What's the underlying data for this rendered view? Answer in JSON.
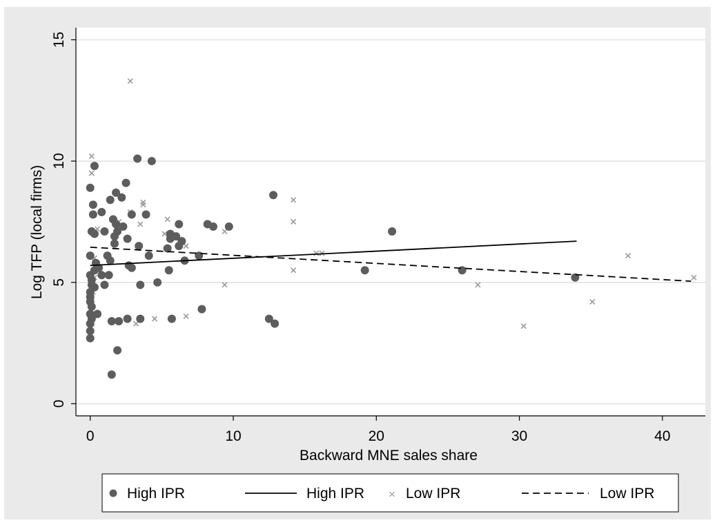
{
  "chart_data": {
    "type": "scatter",
    "xlabel": "Backward MNE sales share",
    "ylabel": "Log TFP (local firms)",
    "xlim": [
      -1,
      43
    ],
    "ylim": [
      -0.5,
      15.5
    ],
    "xticks": [
      0,
      10,
      20,
      30,
      40
    ],
    "yticks": [
      0,
      5,
      10,
      15
    ],
    "grid": "horizontal",
    "legend_position": "bottom",
    "colors": {
      "background": "#eaeaea",
      "plot_background": "#ffffff",
      "gridline": "#e1e1e1",
      "high_marker": "#5d5d5d",
      "low_marker": "#9a9a9a",
      "line": "#000000"
    },
    "legend": [
      {
        "label": "High IPR",
        "symbol": "dot"
      },
      {
        "label": "High IPR",
        "symbol": "solid-line"
      },
      {
        "label": "Low IPR",
        "symbol": "x"
      },
      {
        "label": "Low IPR",
        "symbol": "dashed-line"
      }
    ],
    "series": [
      {
        "name": "High IPR",
        "kind": "scatter",
        "marker": "dot",
        "points": [
          [
            0,
            8.9
          ],
          [
            0.1,
            7.1
          ],
          [
            0.2,
            7.8
          ],
          [
            0.2,
            8.2
          ],
          [
            0.3,
            9.8
          ],
          [
            0.3,
            7.0
          ],
          [
            0,
            6.1
          ],
          [
            0,
            5.3
          ],
          [
            0.1,
            5.1
          ],
          [
            0.1,
            4.9
          ],
          [
            0,
            4.6
          ],
          [
            0,
            4.4
          ],
          [
            0,
            4.2
          ],
          [
            0.1,
            4.0
          ],
          [
            0,
            3.7
          ],
          [
            0.1,
            3.5
          ],
          [
            0,
            3.3
          ],
          [
            0,
            3.0
          ],
          [
            0,
            2.7
          ],
          [
            0.3,
            4.8
          ],
          [
            0.3,
            5.5
          ],
          [
            0.4,
            5.8
          ],
          [
            0.5,
            3.7
          ],
          [
            0.6,
            5.6
          ],
          [
            0.8,
            7.9
          ],
          [
            0.8,
            5.3
          ],
          [
            1.0,
            4.9
          ],
          [
            1.0,
            7.1
          ],
          [
            1.2,
            6.1
          ],
          [
            1.3,
            5.3
          ],
          [
            1.4,
            5.9
          ],
          [
            1.4,
            8.4
          ],
          [
            1.5,
            1.2
          ],
          [
            1.5,
            3.4
          ],
          [
            1.6,
            7.6
          ],
          [
            1.7,
            6.9
          ],
          [
            1.7,
            6.6
          ],
          [
            1.8,
            8.7
          ],
          [
            1.8,
            7.4
          ],
          [
            1.9,
            7.1
          ],
          [
            1.9,
            2.2
          ],
          [
            2.0,
            3.4
          ],
          [
            2.2,
            8.5
          ],
          [
            2.3,
            7.3
          ],
          [
            2.5,
            9.1
          ],
          [
            2.6,
            6.8
          ],
          [
            2.6,
            3.5
          ],
          [
            2.7,
            5.7
          ],
          [
            2.9,
            7.8
          ],
          [
            2.9,
            5.6
          ],
          [
            3.3,
            10.1
          ],
          [
            3.4,
            6.5
          ],
          [
            3.5,
            3.5
          ],
          [
            3.5,
            4.9
          ],
          [
            3.9,
            7.8
          ],
          [
            4.1,
            6.1
          ],
          [
            4.3,
            10.0
          ],
          [
            4.7,
            5.0
          ],
          [
            5.4,
            6.4
          ],
          [
            5.5,
            5.5
          ],
          [
            5.6,
            7.0
          ],
          [
            5.6,
            6.8
          ],
          [
            5.7,
            3.5
          ],
          [
            6.0,
            6.9
          ],
          [
            6.2,
            7.4
          ],
          [
            6.2,
            6.5
          ],
          [
            6.4,
            6.7
          ],
          [
            6.6,
            5.9
          ],
          [
            7.6,
            6.1
          ],
          [
            7.8,
            3.9
          ],
          [
            8.2,
            7.4
          ],
          [
            8.6,
            7.3
          ],
          [
            9.7,
            7.3
          ],
          [
            12.5,
            3.5
          ],
          [
            12.8,
            8.6
          ],
          [
            12.9,
            3.3
          ],
          [
            19.2,
            5.5
          ],
          [
            21.1,
            7.1
          ],
          [
            26.0,
            5.5
          ],
          [
            33.9,
            5.2
          ]
        ]
      },
      {
        "name": "High IPR",
        "kind": "line",
        "style": "solid",
        "points": [
          [
            0,
            5.7
          ],
          [
            34,
            6.7
          ]
        ]
      },
      {
        "name": "Low IPR",
        "kind": "scatter",
        "marker": "x",
        "points": [
          [
            0.1,
            10.2
          ],
          [
            0.1,
            9.5
          ],
          [
            0.2,
            7.8
          ],
          [
            0.5,
            7.2
          ],
          [
            0.3,
            6.0
          ],
          [
            0.3,
            5.2
          ],
          [
            0.2,
            4.6
          ],
          [
            0.1,
            4.4
          ],
          [
            0.1,
            4.1
          ],
          [
            0.2,
            3.6
          ],
          [
            0.1,
            3.3
          ],
          [
            2.8,
            13.3
          ],
          [
            2.8,
            7.9
          ],
          [
            2.0,
            7.5
          ],
          [
            3.5,
            7.4
          ],
          [
            3.7,
            8.3
          ],
          [
            3.7,
            8.2
          ],
          [
            3.2,
            3.3
          ],
          [
            4.5,
            3.5
          ],
          [
            5.4,
            7.6
          ],
          [
            5.2,
            7.0
          ],
          [
            6.7,
            6.5
          ],
          [
            6.7,
            3.6
          ],
          [
            9.4,
            7.1
          ],
          [
            9.4,
            4.9
          ],
          [
            14.2,
            8.4
          ],
          [
            14.2,
            7.5
          ],
          [
            14.2,
            5.5
          ],
          [
            15.8,
            6.2
          ],
          [
            16.2,
            6.2
          ],
          [
            27.1,
            4.9
          ],
          [
            30.3,
            3.2
          ],
          [
            35.1,
            4.2
          ],
          [
            37.6,
            6.1
          ],
          [
            42.2,
            5.2
          ]
        ]
      },
      {
        "name": "Low IPR",
        "kind": "line",
        "style": "dashed",
        "points": [
          [
            0,
            6.45
          ],
          [
            42,
            5.05
          ]
        ]
      }
    ]
  }
}
